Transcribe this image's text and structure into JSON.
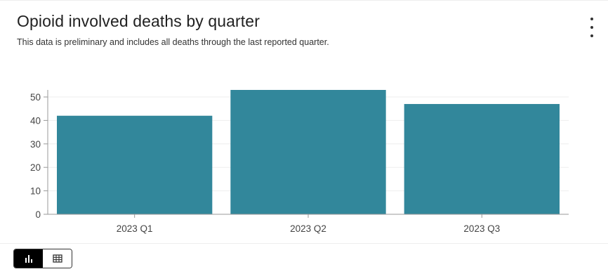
{
  "header": {
    "title": "Opioid involved deaths by quarter",
    "subtitle": "This data is preliminary and includes all deaths through the last reported quarter."
  },
  "menu": {
    "icon": "kebab-menu-icon"
  },
  "view_toggle": {
    "options": [
      {
        "icon": "bar-chart-icon",
        "active": true
      },
      {
        "icon": "table-icon",
        "active": false
      }
    ]
  },
  "colors": {
    "bar": "#32879b",
    "grid": "#eeeeee",
    "axis": "#999999",
    "tick_text": "#444444"
  },
  "chart_data": {
    "type": "bar",
    "categories": [
      "2023 Q1",
      "2023 Q2",
      "2023 Q3"
    ],
    "values": [
      42,
      53,
      47
    ],
    "title": "Opioid involved deaths by quarter",
    "xlabel": "",
    "ylabel": "",
    "ylim": [
      0,
      53
    ],
    "yticks": [
      0,
      10,
      20,
      30,
      40,
      50
    ],
    "grid": true,
    "legend": "none"
  }
}
